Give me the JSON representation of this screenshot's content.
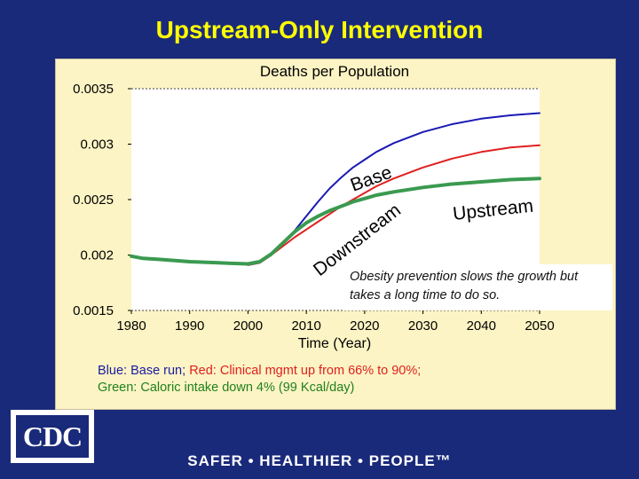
{
  "slide": {
    "title": "Upstream-Only Intervention",
    "footer": "SAFER • HEALTHIER • PEOPLE™",
    "logo_text": "CDC"
  },
  "chart_data": {
    "type": "line",
    "title": "Deaths per Population",
    "xlabel": "Time (Year)",
    "ylabel": "",
    "xlim": [
      1980,
      2050
    ],
    "ylim": [
      0.0015,
      0.0035
    ],
    "x_ticks": [
      "1980",
      "1990",
      "2000",
      "2010",
      "2020",
      "2030",
      "2040",
      "2050"
    ],
    "y_ticks": [
      "0.0035",
      "0.003",
      "0.0025",
      "0.002",
      "0.0015"
    ],
    "series": [
      {
        "color": "#1a1ab4",
        "x": [
          2000,
          2002,
          2004,
          2006,
          2008,
          2010,
          2012,
          2014,
          2016,
          2018,
          2020,
          2022,
          2025,
          2030,
          2035,
          2040,
          2045,
          2050
        ],
        "y": [
          0.00191,
          0.00193,
          0.002,
          0.0021,
          0.00222,
          0.00235,
          0.00248,
          0.0026,
          0.0027,
          0.00279,
          0.00286,
          0.00293,
          0.00301,
          0.00311,
          0.00318,
          0.00323,
          0.00326,
          0.00328
        ]
      },
      {
        "color": "#e02020",
        "x": [
          2000,
          2002,
          2004,
          2006,
          2008,
          2010,
          2012,
          2014,
          2016,
          2018,
          2020,
          2022,
          2025,
          2030,
          2035,
          2040,
          2045,
          2050
        ],
        "y": [
          0.00191,
          0.00193,
          0.002,
          0.00208,
          0.00216,
          0.00223,
          0.0023,
          0.00237,
          0.00244,
          0.0025,
          0.00256,
          0.00262,
          0.00269,
          0.00279,
          0.00287,
          0.00293,
          0.00297,
          0.00299
        ]
      },
      {
        "color": "#3a9a50",
        "x": [
          1980,
          1982,
          1985,
          1990,
          1995,
          2000,
          2002,
          2004,
          2006,
          2008,
          2010,
          2012,
          2014,
          2016,
          2018,
          2020,
          2022,
          2025,
          2030,
          2035,
          2040,
          2045,
          2050
        ],
        "y": [
          0.00199,
          0.00197,
          0.00196,
          0.00194,
          0.00193,
          0.00192,
          0.00194,
          0.00201,
          0.00211,
          0.00221,
          0.00229,
          0.00235,
          0.0024,
          0.00244,
          0.00248,
          0.00251,
          0.00254,
          0.00257,
          0.00261,
          0.00264,
          0.00266,
          0.00268,
          0.00269
        ]
      }
    ],
    "annotations": {
      "base": "Base",
      "upstream": "Upstream",
      "downstream": "Downstream",
      "note": "Obesity prevention slows the growth but takes a long time to do so."
    }
  },
  "caption": {
    "line1_blue": "Blue: Base run;",
    "line1_red": "Red: Clinical mgmt up from 66% to 90%;",
    "line2_green": "Green: Caloric intake down 4% (99 Kcal/day)"
  }
}
